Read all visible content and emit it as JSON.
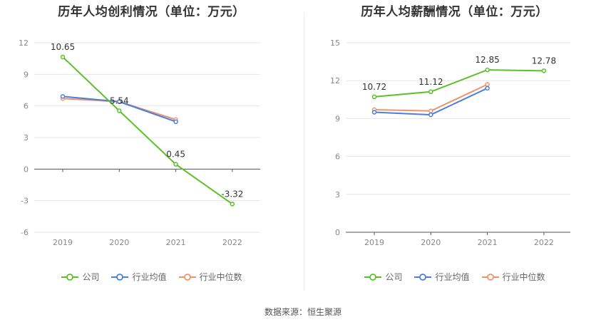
{
  "legend": [
    "公司",
    "行业均值",
    "行业中位数"
  ],
  "source_text": "数据来源：恒生聚源",
  "colors": {
    "company": "#5cc128",
    "industry_mean": "#4a7fdc",
    "industry_median": "#f0936c"
  },
  "chart_data": [
    {
      "type": "line",
      "title": "历年人均创利情况（单位：万元）",
      "categories": [
        "2019",
        "2020",
        "2021",
        "2022"
      ],
      "ylim": [
        -6,
        12
      ],
      "yticks": [
        -6,
        -3,
        0,
        3,
        6,
        9,
        12
      ],
      "grid": true,
      "legend_position": "bottom",
      "series": [
        {
          "name": "公司",
          "values": [
            10.65,
            5.54,
            0.45,
            -3.32
          ],
          "labels": [
            "10.65",
            "5.54",
            "0.45",
            "-3.32"
          ]
        },
        {
          "name": "行业均值",
          "values": [
            6.9,
            6.4,
            4.5,
            null
          ]
        },
        {
          "name": "行业中位数",
          "values": [
            6.7,
            6.4,
            4.7,
            null
          ]
        }
      ]
    },
    {
      "type": "line",
      "title": "历年人均薪酬情况（单位：万元）",
      "categories": [
        "2019",
        "2020",
        "2021",
        "2022"
      ],
      "ylim": [
        0,
        15
      ],
      "yticks": [
        0,
        3,
        6,
        9,
        12,
        15
      ],
      "grid": true,
      "legend_position": "bottom",
      "series": [
        {
          "name": "公司",
          "values": [
            10.72,
            11.12,
            12.85,
            12.78
          ],
          "labels": [
            "10.72",
            "11.12",
            "12.85",
            "12.78"
          ]
        },
        {
          "name": "行业均值",
          "values": [
            9.5,
            9.3,
            11.4,
            null
          ]
        },
        {
          "name": "行业中位数",
          "values": [
            9.7,
            9.6,
            11.7,
            null
          ]
        }
      ]
    }
  ]
}
